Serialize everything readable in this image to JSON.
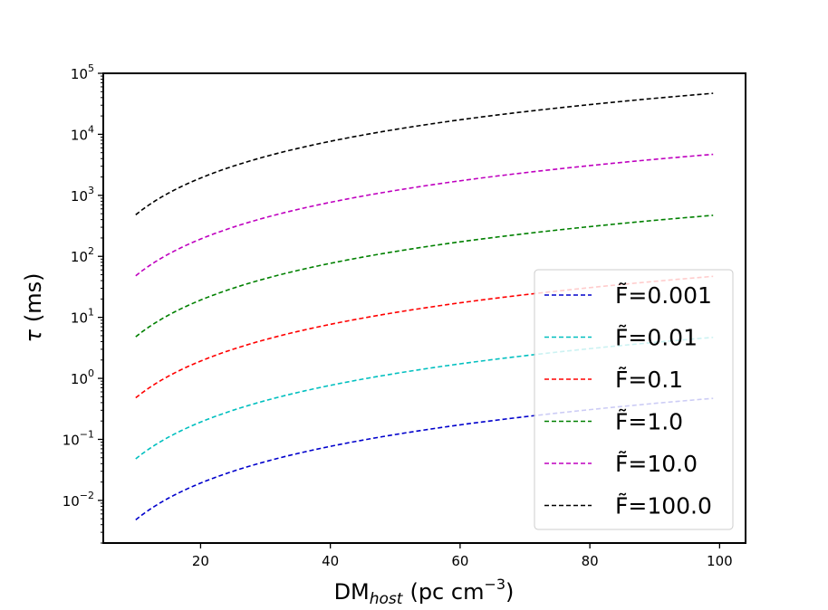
{
  "chart_data": {
    "type": "line",
    "title": "",
    "xlabel": {
      "main": "DM",
      "sub": "host",
      "unit": "(pc cm",
      "unit_sup": "−3",
      "close": ")"
    },
    "ylabel": {
      "symbol": "τ",
      "unit": "(ms)"
    },
    "xlim": [
      5,
      104
    ],
    "ylim": [
      0.002,
      100000
    ],
    "yscale": "log",
    "grid": false,
    "legend_position": "lower-right",
    "x_ticks": [
      {
        "value": 20,
        "label": "20"
      },
      {
        "value": 40,
        "label": "40"
      },
      {
        "value": 60,
        "label": "60"
      },
      {
        "value": 80,
        "label": "80"
      },
      {
        "value": 100,
        "label": "100"
      }
    ],
    "y_ticks": [
      {
        "value": 0.01,
        "base": "10",
        "exp": "−2"
      },
      {
        "value": 0.1,
        "base": "10",
        "exp": "−1"
      },
      {
        "value": 1,
        "base": "10",
        "exp": "0"
      },
      {
        "value": 10,
        "base": "10",
        "exp": "1"
      },
      {
        "value": 100,
        "base": "10",
        "exp": "2"
      },
      {
        "value": 1000,
        "base": "10",
        "exp": "3"
      },
      {
        "value": 10000,
        "base": "10",
        "exp": "4"
      },
      {
        "value": 100000,
        "base": "10",
        "exp": "5"
      }
    ],
    "x": [
      10,
      20,
      30,
      40,
      50,
      60,
      70,
      80,
      90,
      99
    ],
    "series": [
      {
        "name": "F̃=0.001",
        "color": "#0000cc",
        "values": [
          0.0048,
          0.0192,
          0.0432,
          0.0768,
          0.12,
          0.173,
          0.235,
          0.307,
          0.389,
          0.47
        ]
      },
      {
        "name": "F̃=0.01",
        "color": "#00bfbf",
        "values": [
          0.048,
          0.192,
          0.432,
          0.768,
          1.2,
          1.73,
          2.35,
          3.07,
          3.89,
          4.7
        ]
      },
      {
        "name": "F̃=0.1",
        "color": "#ff0000",
        "values": [
          0.48,
          1.92,
          4.32,
          7.68,
          12.0,
          17.3,
          23.5,
          30.7,
          38.9,
          47.0
        ]
      },
      {
        "name": "F̃=1.0",
        "color": "#008000",
        "values": [
          4.8,
          19.2,
          43.2,
          76.8,
          120,
          173,
          235,
          307,
          389,
          470
        ]
      },
      {
        "name": "F̃=10.0",
        "color": "#bf00bf",
        "values": [
          48,
          192,
          432,
          768,
          1200,
          1730,
          2350,
          3070,
          3890,
          4700
        ]
      },
      {
        "name": "F̃=100.0",
        "color": "#000000",
        "values": [
          480,
          1920,
          4320,
          7680,
          12000,
          17300,
          23500,
          30700,
          38900,
          47000
        ]
      }
    ]
  }
}
